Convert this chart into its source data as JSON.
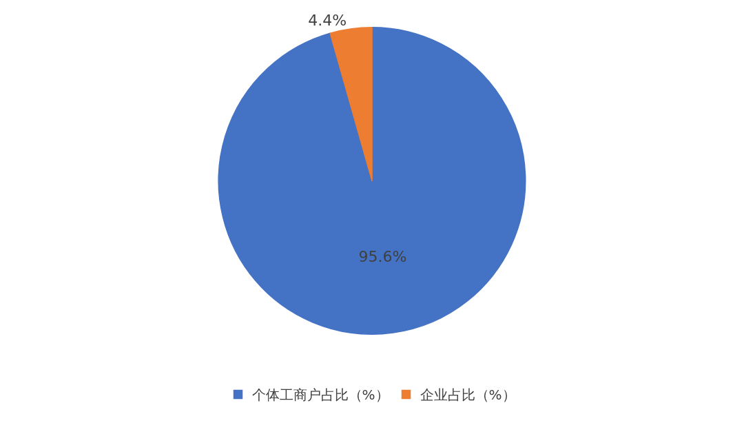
{
  "chart_data": {
    "type": "pie",
    "categories": [
      "个体工商户占比（%）",
      "企业占比（%）"
    ],
    "values": [
      95.6,
      4.4
    ],
    "colors": [
      "#4472c4",
      "#ed7d31"
    ],
    "value_labels": [
      "95.6%",
      "4.4%"
    ],
    "legend": "bottom"
  }
}
